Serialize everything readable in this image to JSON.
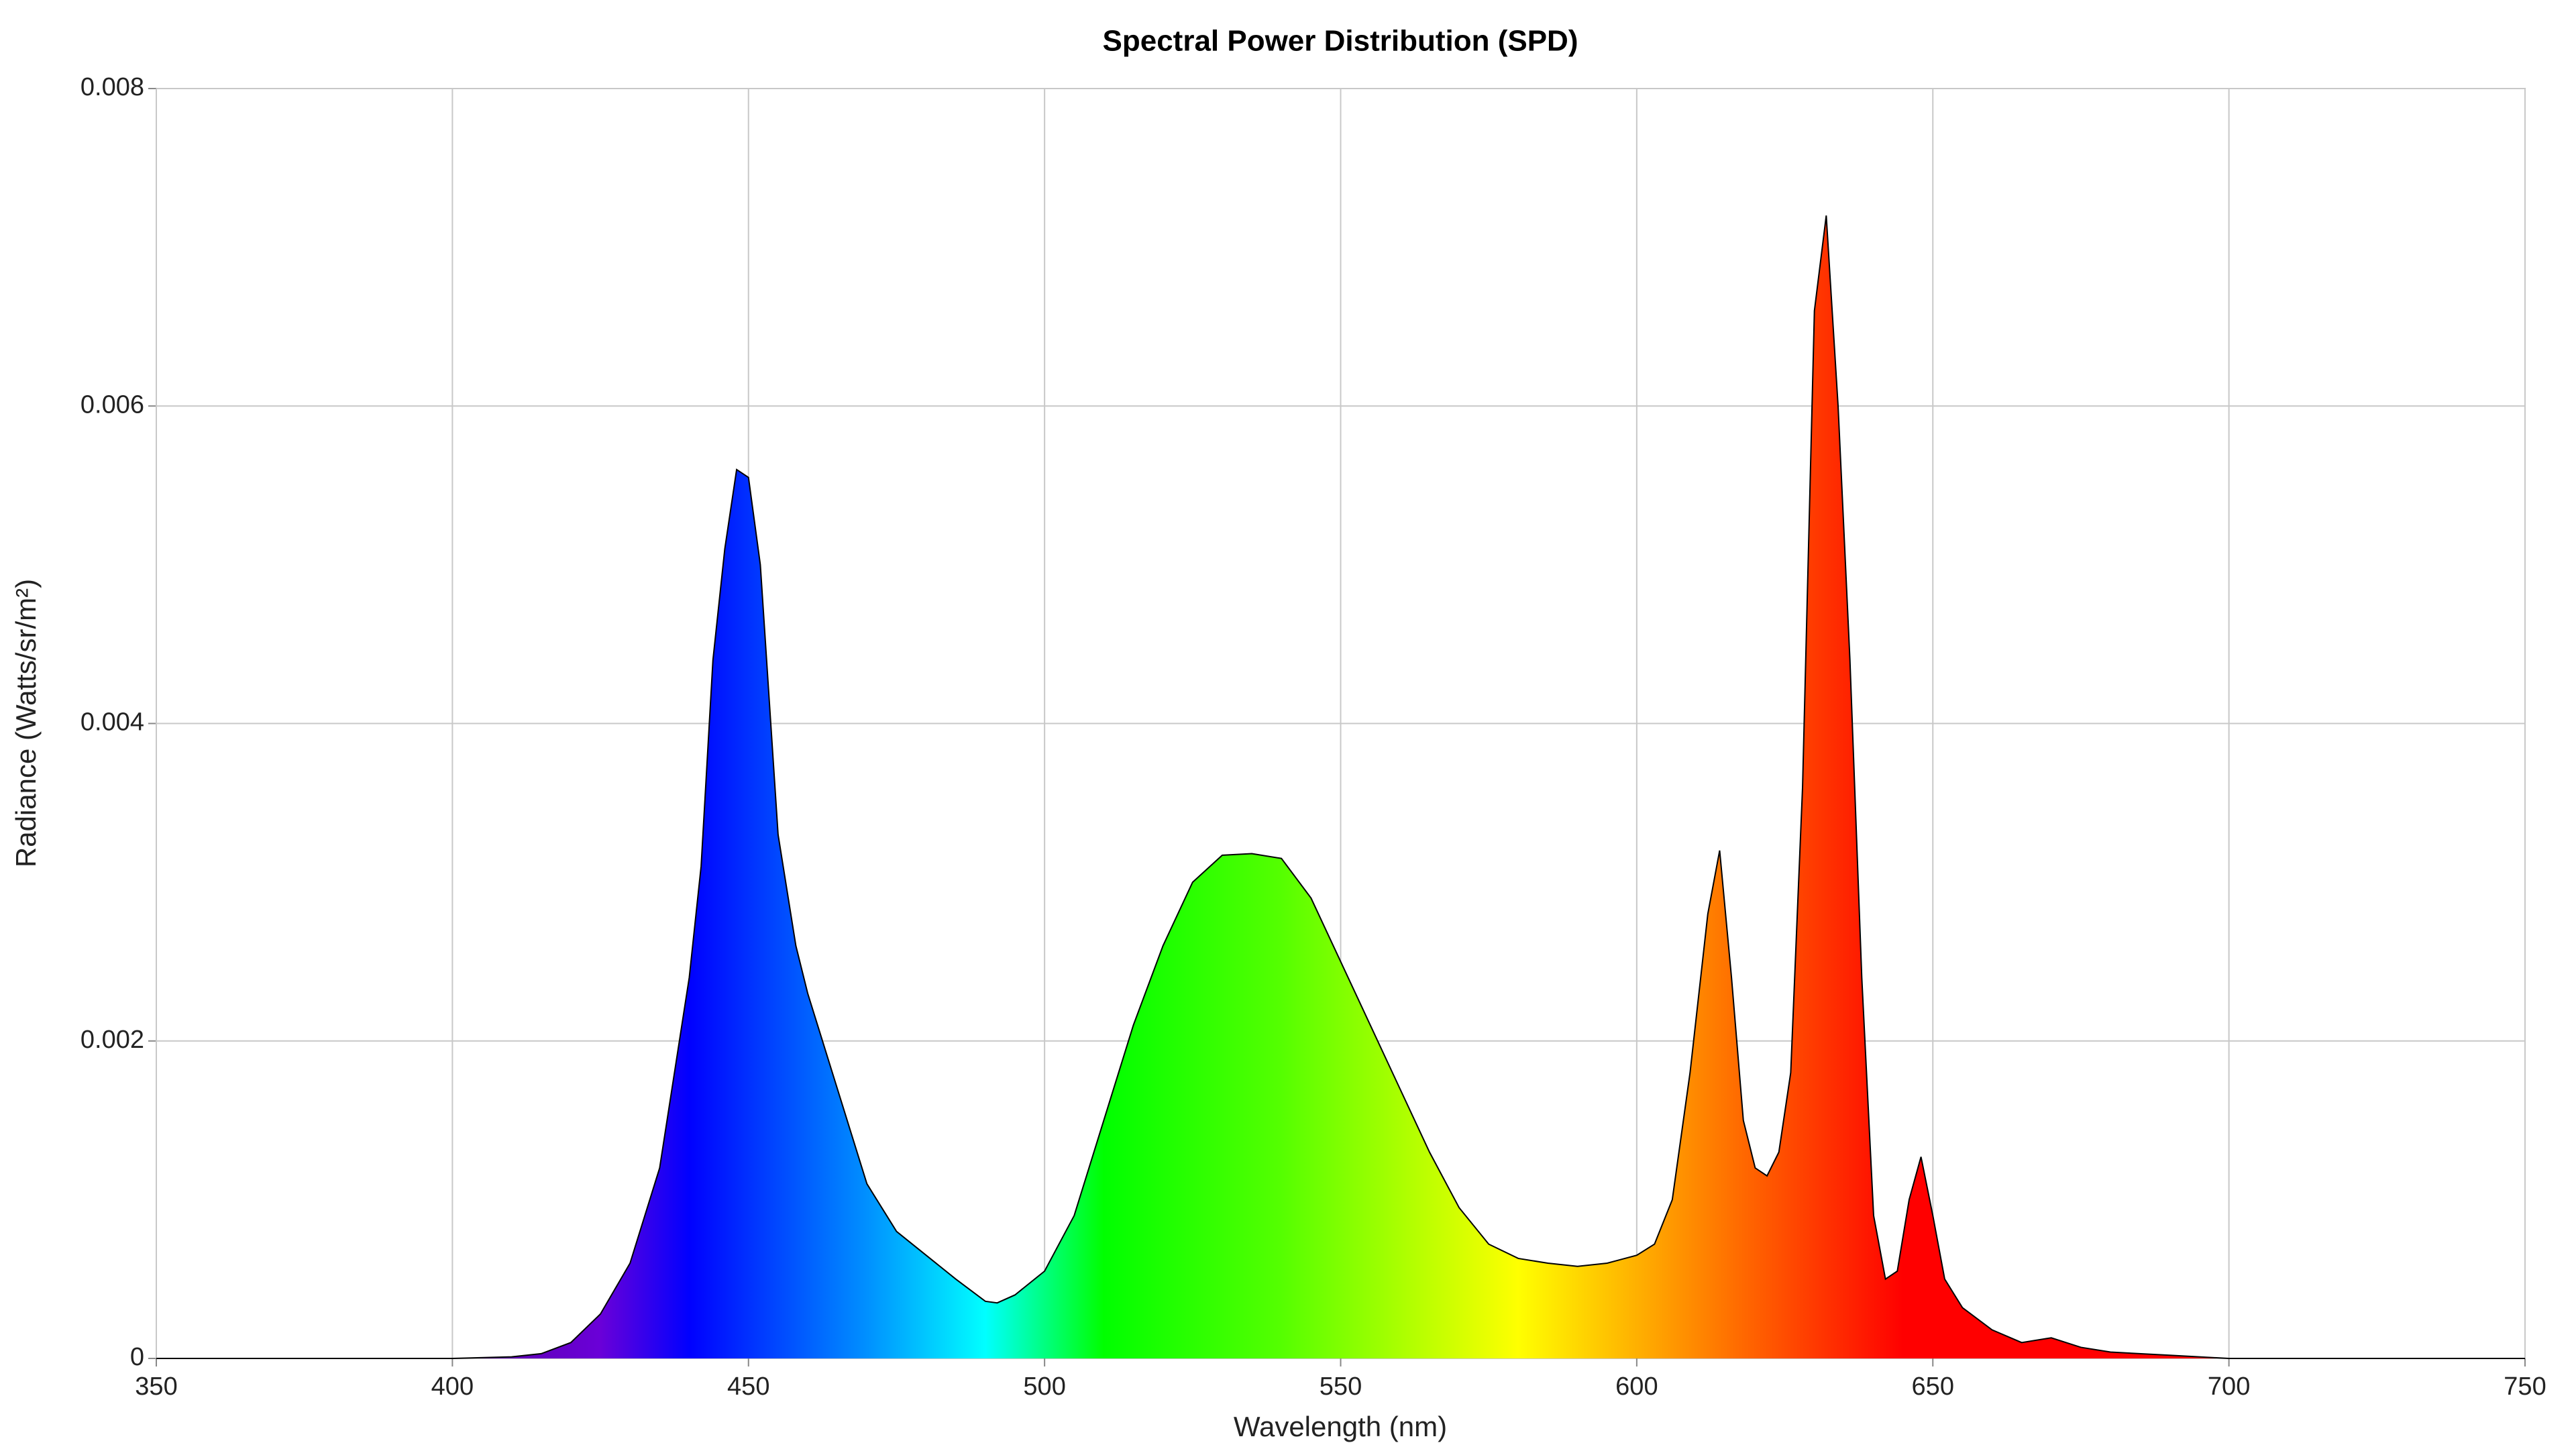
{
  "chart_data": {
    "type": "area",
    "title": "Spectral Power Distribution (SPD)",
    "x_label": "Wavelength (nm)",
    "y_label": "Radiance (Watts/sr/m²)",
    "x": [
      350,
      400,
      410,
      415,
      420,
      425,
      430,
      435,
      440,
      442,
      444,
      446,
      448,
      450,
      452,
      455,
      458,
      460,
      465,
      470,
      475,
      480,
      485,
      490,
      492,
      495,
      500,
      505,
      510,
      515,
      520,
      525,
      530,
      535,
      540,
      545,
      550,
      555,
      560,
      565,
      570,
      575,
      580,
      585,
      590,
      595,
      600,
      603,
      606,
      609,
      612,
      614,
      616,
      618,
      620,
      622,
      624,
      626,
      628,
      630,
      632,
      634,
      636,
      638,
      640,
      642,
      644,
      646,
      648,
      650,
      652,
      655,
      660,
      665,
      670,
      675,
      680,
      690,
      700,
      750
    ],
    "values": [
      0,
      0,
      1e-05,
      3e-05,
      0.0001,
      0.00028,
      0.0006,
      0.0012,
      0.0024,
      0.0031,
      0.0044,
      0.0051,
      0.0056,
      0.00555,
      0.005,
      0.0033,
      0.0026,
      0.0023,
      0.0017,
      0.0011,
      0.0008,
      0.00065,
      0.0005,
      0.00036,
      0.00035,
      0.0004,
      0.00055,
      0.0009,
      0.0015,
      0.0021,
      0.0026,
      0.003,
      0.00317,
      0.00318,
      0.00315,
      0.0029,
      0.0025,
      0.0021,
      0.0017,
      0.0013,
      0.00095,
      0.00072,
      0.00063,
      0.0006,
      0.00058,
      0.0006,
      0.00065,
      0.00072,
      0.001,
      0.0018,
      0.0028,
      0.0032,
      0.0024,
      0.0015,
      0.0012,
      0.00115,
      0.0013,
      0.0018,
      0.0036,
      0.0066,
      0.0072,
      0.006,
      0.0044,
      0.0024,
      0.0009,
      0.0005,
      0.00055,
      0.001,
      0.00127,
      0.0009,
      0.0005,
      0.00032,
      0.00018,
      0.0001,
      0.00013,
      7e-05,
      4e-05,
      2e-05,
      0,
      0
    ],
    "fill_gradient": [
      [
        400,
        "#5a00a0"
      ],
      [
        425,
        "#6a00d8"
      ],
      [
        440,
        "#0000ff"
      ],
      [
        470,
        "#0090ff"
      ],
      [
        490,
        "#00ffff"
      ],
      [
        510,
        "#00ff00"
      ],
      [
        540,
        "#55ff00"
      ],
      [
        580,
        "#ffff00"
      ],
      [
        600,
        "#ffb000"
      ],
      [
        620,
        "#ff6000"
      ],
      [
        645,
        "#ff0000"
      ],
      [
        750,
        "#ff0000"
      ]
    ],
    "line_color": "#000000",
    "xlim": [
      350,
      750
    ],
    "xticks": [
      350,
      400,
      450,
      500,
      550,
      600,
      650,
      700,
      750
    ],
    "ylim": [
      0,
      0.008
    ],
    "yticks": [
      0,
      0.002,
      0.004,
      0.006,
      0.008
    ],
    "grid": true
  }
}
